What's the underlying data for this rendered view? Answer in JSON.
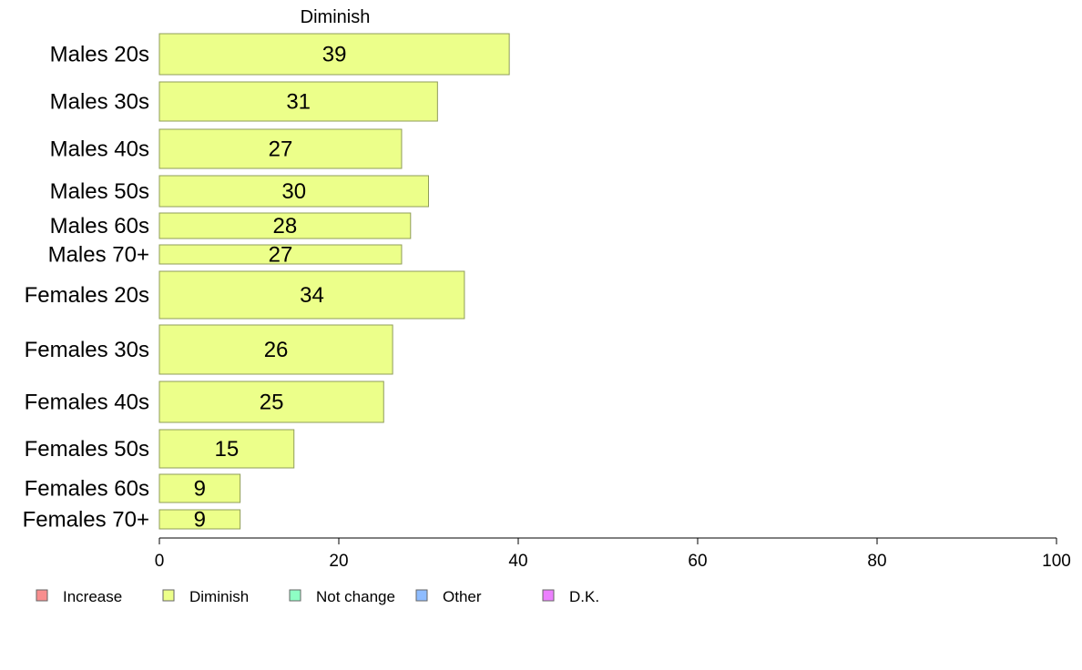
{
  "chart_data": {
    "type": "bar",
    "orientation": "horizontal",
    "title": "Diminish",
    "xlabel": "",
    "ylabel": "",
    "xlim": [
      0,
      100
    ],
    "xticks": [
      0,
      20,
      40,
      60,
      80,
      100
    ],
    "grid": false,
    "categories": [
      "Males 20s",
      "Males 30s",
      "Males 40s",
      "Males 50s",
      "Males 60s",
      "Males 70+",
      "Females 20s",
      "Females 30s",
      "Females 40s",
      "Females 50s",
      "Females 60s",
      "Females 70+"
    ],
    "values": [
      39,
      31,
      27,
      30,
      28,
      27,
      34,
      26,
      25,
      15,
      9,
      9
    ],
    "bar_color": "#ecff8a",
    "legend": {
      "placement": "bottom-left",
      "entries": [
        {
          "label": "Increase",
          "color": "#f88e8e"
        },
        {
          "label": "Diminish",
          "color": "#ecff8a"
        },
        {
          "label": "Not change",
          "color": "#8effc4"
        },
        {
          "label": "Other",
          "color": "#8ebcff"
        },
        {
          "label": "D.K.",
          "color": "#ec80ff"
        }
      ]
    }
  }
}
